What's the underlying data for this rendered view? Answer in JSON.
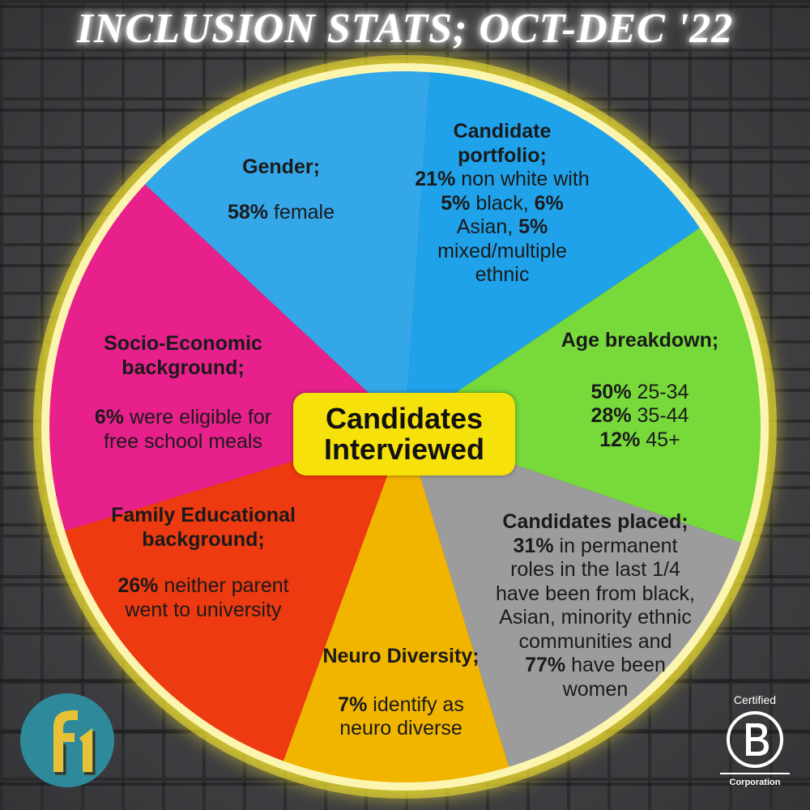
{
  "title": "INCLUSION STATS; OCT-DEC '22",
  "center_label": {
    "line1": "Candidates",
    "line2": "Interviewed"
  },
  "colors": {
    "gender": "#34a7e8",
    "portfolio": "#1fa2ea",
    "age": "#77d93a",
    "placed": "#9c9c9c",
    "neuro": "#f1b500",
    "family": "#ee3a10",
    "socio": "#e8208c",
    "ring": "#f8ee7a",
    "center": "#f7e10b"
  },
  "segments": {
    "gender": {
      "heading": "Gender;",
      "stat": "58%",
      "text": "female"
    },
    "portfolio": {
      "heading_line1": "Candidate",
      "heading_line2": "portfolio;",
      "stat1": "21%",
      "text1": "non white with",
      "stat2": "5%",
      "text2": "black,",
      "stat3": "6%",
      "text3": "Asian,",
      "stat4": "5%",
      "text4_line1": "mixed/multiple",
      "text4_line2": "ethnic"
    },
    "age": {
      "heading": "Age breakdown;",
      "rows": [
        {
          "stat": "50%",
          "text": "25-34"
        },
        {
          "stat": "28%",
          "text": "35-44"
        },
        {
          "stat": "12%",
          "text": "45+"
        }
      ]
    },
    "placed": {
      "heading": "Candidates placed;",
      "stat1": "31%",
      "lines": [
        "in permanent",
        "roles in the last 1/4",
        "have been from black,",
        "Asian, minority ethnic",
        "communities and"
      ],
      "stat2": "77%",
      "text2_line1": "have been",
      "text2_line2": "women"
    },
    "neuro": {
      "heading": "Neuro Diversity;",
      "stat": "7%",
      "text_line1": "identify as",
      "text_line2": "neuro diverse"
    },
    "family": {
      "heading_line1": "Family Educational",
      "heading_line2": "background;",
      "stat": "26%",
      "text_line1": "neither parent",
      "text_line2": "went to university"
    },
    "socio": {
      "heading_line1": "Socio-Economic",
      "heading_line2": "background;",
      "stat": "6%",
      "text_line1": "were eligible for",
      "text_line2": "free school meals"
    }
  },
  "logos": {
    "left_icon": "f1-logo-icon",
    "bcorp_top": "Certified",
    "bcorp_bottom": "Corporation",
    "bcorp_icon": "b-corp-icon"
  }
}
